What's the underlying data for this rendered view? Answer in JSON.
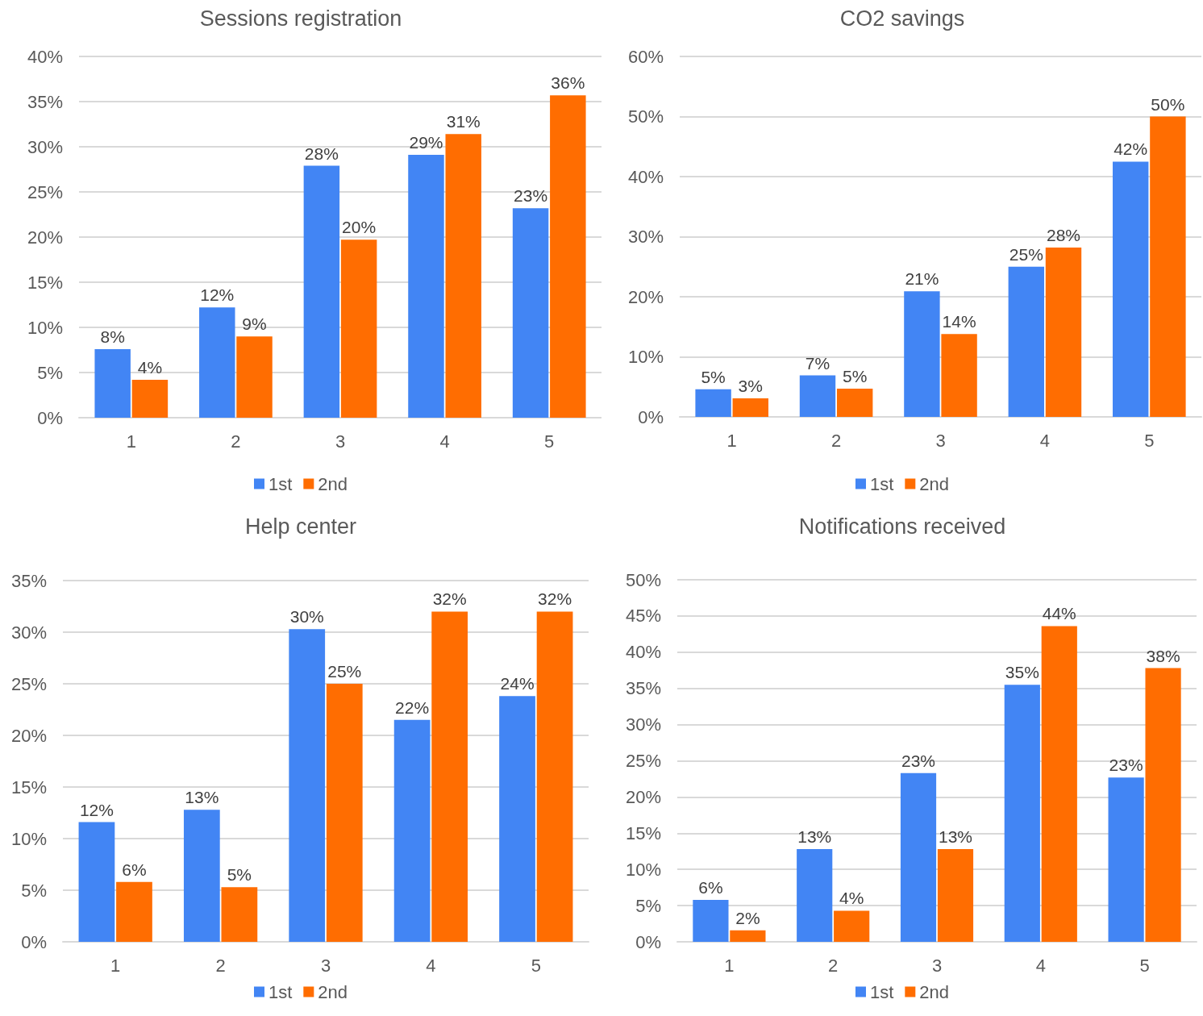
{
  "chart_data": [
    {
      "type": "bar",
      "title": "Sessions registration",
      "categories": [
        "1",
        "2",
        "3",
        "4",
        "5"
      ],
      "series": [
        {
          "name": "1st",
          "color": "#4285f4",
          "values": [
            7.6,
            12.2,
            27.9,
            29.1,
            23.2
          ],
          "value_labels": [
            "8%",
            "12%",
            "28%",
            "29%",
            "23%"
          ]
        },
        {
          "name": "2nd",
          "color": "#ff6d01",
          "values": [
            4.2,
            9.0,
            19.7,
            31.4,
            35.7
          ],
          "value_labels": [
            "4%",
            "9%",
            "20%",
            "31%",
            "36%"
          ]
        }
      ],
      "ylim": [
        0,
        40
      ],
      "yticks": [
        {
          "value": 0,
          "label": "0%"
        },
        {
          "value": 5,
          "label": "5%"
        },
        {
          "value": 10,
          "label": "10%"
        },
        {
          "value": 15,
          "label": "15%"
        },
        {
          "value": 20,
          "label": "20%"
        },
        {
          "value": 25,
          "label": "25%"
        },
        {
          "value": 30,
          "label": "30%"
        },
        {
          "value": 35,
          "label": "35%"
        },
        {
          "value": 40,
          "label": "40%"
        }
      ],
      "grid": "y",
      "legend": "bottom"
    },
    {
      "type": "bar",
      "title": "CO2 savings",
      "categories": [
        "1",
        "2",
        "3",
        "4",
        "5"
      ],
      "series": [
        {
          "name": "1st",
          "color": "#4285f4",
          "values": [
            4.6,
            6.9,
            20.9,
            25.0,
            42.5
          ],
          "value_labels": [
            "5%",
            "7%",
            "21%",
            "25%",
            "42%"
          ]
        },
        {
          "name": "2nd",
          "color": "#ff6d01",
          "values": [
            3.1,
            4.7,
            13.8,
            28.2,
            50.0
          ],
          "value_labels": [
            "3%",
            "5%",
            "14%",
            "28%",
            "50%"
          ]
        }
      ],
      "ylim": [
        0,
        60
      ],
      "yticks": [
        {
          "value": 0,
          "label": "0%"
        },
        {
          "value": 10,
          "label": "10%"
        },
        {
          "value": 20,
          "label": "20%"
        },
        {
          "value": 30,
          "label": "30%"
        },
        {
          "value": 40,
          "label": "40%"
        },
        {
          "value": 50,
          "label": "50%"
        },
        {
          "value": 60,
          "label": "60%"
        }
      ],
      "grid": "y",
      "legend": "bottom"
    },
    {
      "type": "bar",
      "title": "Help center",
      "categories": [
        "1",
        "2",
        "3",
        "4",
        "5"
      ],
      "series": [
        {
          "name": "1st",
          "color": "#4285f4",
          "values": [
            11.6,
            12.8,
            30.3,
            21.5,
            23.8
          ],
          "value_labels": [
            "12%",
            "13%",
            "30%",
            "22%",
            "24%"
          ]
        },
        {
          "name": "2nd",
          "color": "#ff6d01",
          "values": [
            5.8,
            5.3,
            25.0,
            32.0,
            32.0
          ],
          "value_labels": [
            "6%",
            "5%",
            "25%",
            "32%",
            "32%"
          ]
        }
      ],
      "ylim": [
        0,
        35
      ],
      "yticks": [
        {
          "value": 0,
          "label": "0%"
        },
        {
          "value": 5,
          "label": "5%"
        },
        {
          "value": 10,
          "label": "10%"
        },
        {
          "value": 15,
          "label": "15%"
        },
        {
          "value": 20,
          "label": "20%"
        },
        {
          "value": 25,
          "label": "25%"
        },
        {
          "value": 30,
          "label": "30%"
        },
        {
          "value": 35,
          "label": "35%"
        }
      ],
      "grid": "y",
      "legend": "bottom"
    },
    {
      "type": "bar",
      "title": "Notifications received",
      "categories": [
        "1",
        "2",
        "3",
        "4",
        "5"
      ],
      "series": [
        {
          "name": "1st",
          "color": "#4285f4",
          "values": [
            5.8,
            12.8,
            23.3,
            35.5,
            22.7
          ],
          "value_labels": [
            "6%",
            "13%",
            "23%",
            "35%",
            "23%"
          ]
        },
        {
          "name": "2nd",
          "color": "#ff6d01",
          "values": [
            1.6,
            4.3,
            12.8,
            43.6,
            37.8
          ],
          "value_labels": [
            "2%",
            "4%",
            "13%",
            "44%",
            "38%"
          ]
        }
      ],
      "ylim": [
        0,
        50
      ],
      "yticks": [
        {
          "value": 0,
          "label": "0%"
        },
        {
          "value": 5,
          "label": "5%"
        },
        {
          "value": 10,
          "label": "10%"
        },
        {
          "value": 15,
          "label": "15%"
        },
        {
          "value": 20,
          "label": "20%"
        },
        {
          "value": 25,
          "label": "25%"
        },
        {
          "value": 30,
          "label": "30%"
        },
        {
          "value": 35,
          "label": "35%"
        },
        {
          "value": 40,
          "label": "40%"
        },
        {
          "value": 45,
          "label": "45%"
        },
        {
          "value": 50,
          "label": "50%"
        }
      ],
      "grid": "y",
      "legend": "bottom"
    }
  ]
}
